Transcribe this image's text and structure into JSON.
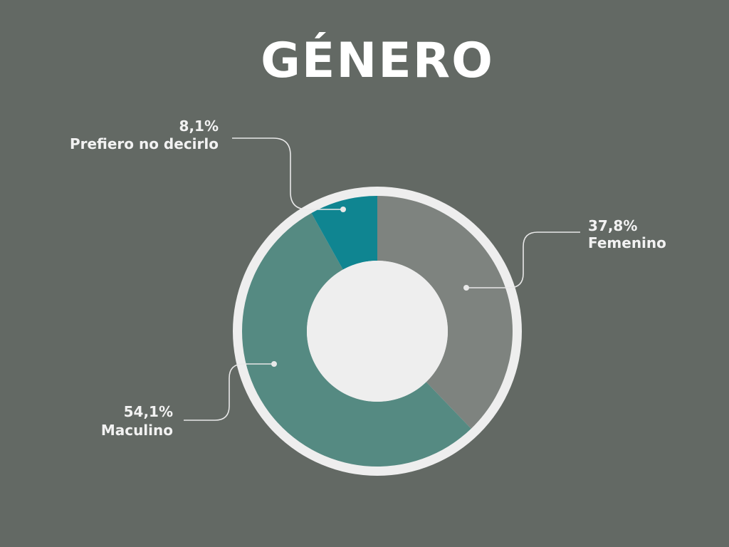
{
  "chart_data": {
    "type": "pie",
    "title": "GÉNERO",
    "slices": [
      {
        "label": "Femenino",
        "value": 37.8,
        "value_label": "37,8%",
        "color": "#7e837f"
      },
      {
        "label": "Maculino",
        "value": 54.1,
        "value_label": "54,1%",
        "color": "#558a82"
      },
      {
        "label": "Prefiero no decirlo",
        "value": 8.1,
        "value_label": "8,1%",
        "color": "#0f8591"
      }
    ]
  },
  "colors": {
    "background": "#636964",
    "ring": "#eeeeee",
    "text": "#f2f2f2",
    "leader": "#e8e8e8"
  }
}
